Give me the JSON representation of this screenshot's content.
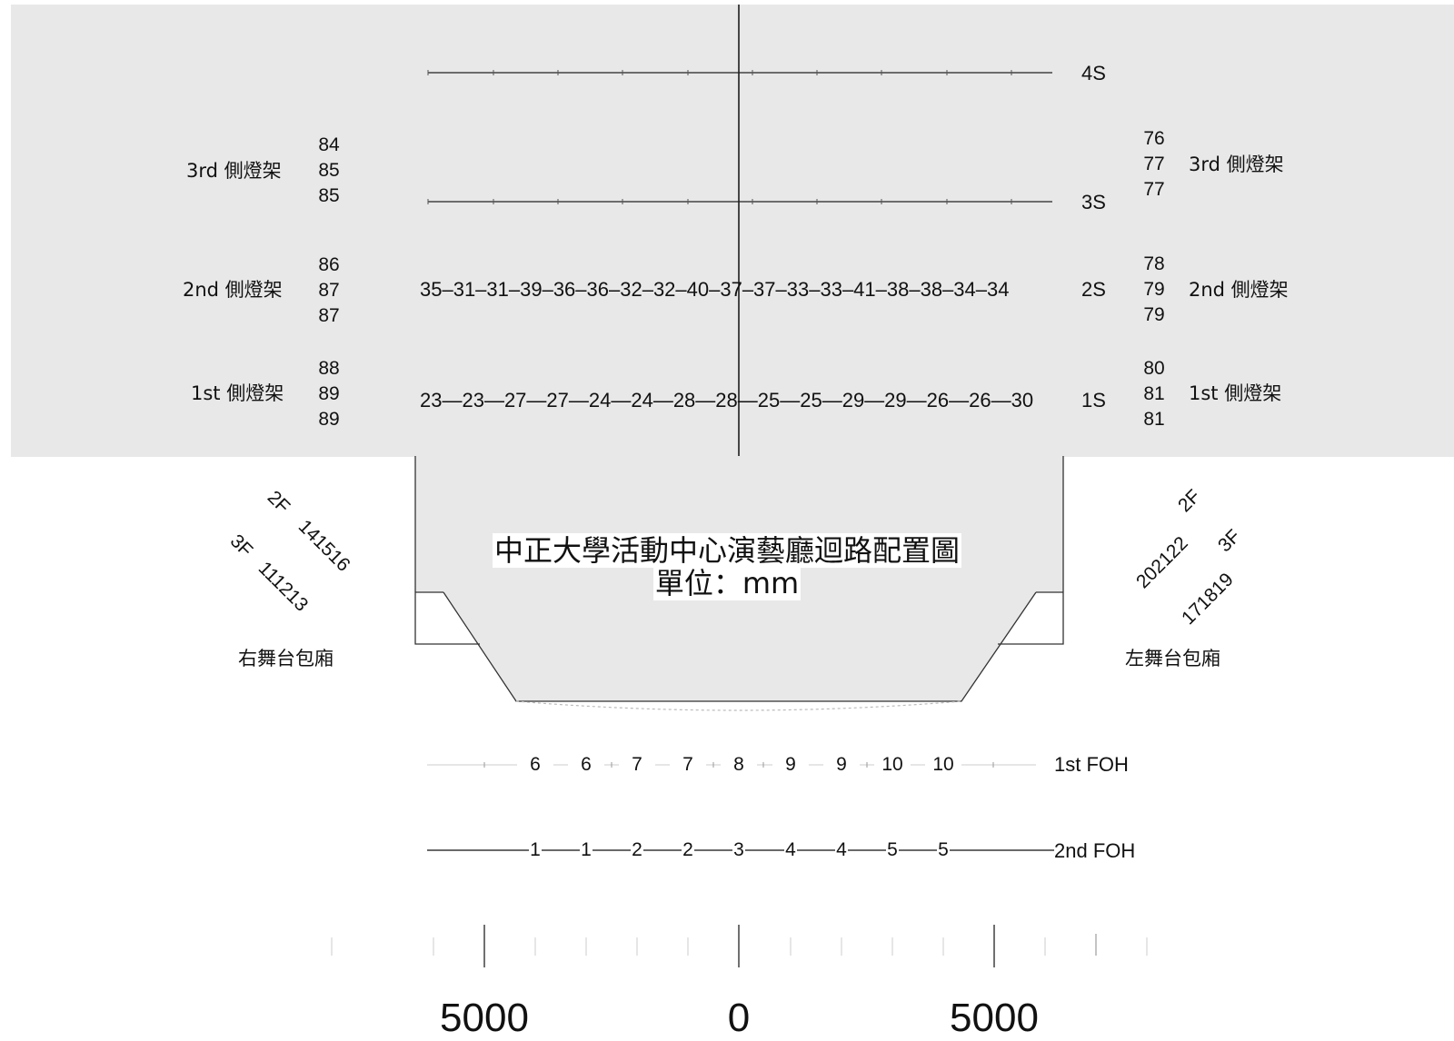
{
  "title": "中正大學活動中心演藝廳迴路配置圖",
  "unit": "單位：mm",
  "stage_pipes": {
    "pipe_4s": "4S",
    "pipe_3s": "3S",
    "pipe_2s": {
      "label": "2S",
      "circuits": "35–31–31–39–36–36–32–32–40–37–37–33–33–41–38–38–34–34"
    },
    "pipe_1s": {
      "label": "1S",
      "circuits": "23—23—27—27—24—24—28—28—25—25—29—29—26—26—30"
    }
  },
  "side_booms": {
    "left": [
      {
        "label": "3rd 側燈架",
        "circuits": [
          "84",
          "85",
          "85"
        ]
      },
      {
        "label": "2nd 側燈架",
        "circuits": [
          "86",
          "87",
          "87"
        ]
      },
      {
        "label": "1st 側燈架",
        "circuits": [
          "88",
          "89",
          "89"
        ]
      }
    ],
    "right": [
      {
        "label": "3rd 側燈架",
        "circuits": [
          "76",
          "77",
          "77"
        ]
      },
      {
        "label": "2nd 側燈架",
        "circuits": [
          "78",
          "79",
          "79"
        ]
      },
      {
        "label": "1st 側燈架",
        "circuits": [
          "80",
          "81",
          "81"
        ]
      }
    ]
  },
  "boxes": {
    "left": {
      "label": "右舞台包廂",
      "f2": "2F",
      "f2_circuits": "141516",
      "f3": "3F",
      "f3_circuits": "111213"
    },
    "right": {
      "label": "左舞台包廂",
      "f2": "2F",
      "f2_circuits": "202122",
      "f3": "3F",
      "f3_circuits": "171819"
    }
  },
  "foh": {
    "first": {
      "label": "1st FOH",
      "circuits": [
        "6",
        "6",
        "7",
        "7",
        "8",
        "9",
        "9",
        "10",
        "10"
      ]
    },
    "second": {
      "label": "2nd FOH",
      "circuits": [
        "1",
        "1",
        "2",
        "2",
        "3",
        "4",
        "4",
        "5",
        "5"
      ]
    }
  },
  "scale_bar": {
    "left": "5000",
    "center": "0",
    "right": "5000"
  }
}
